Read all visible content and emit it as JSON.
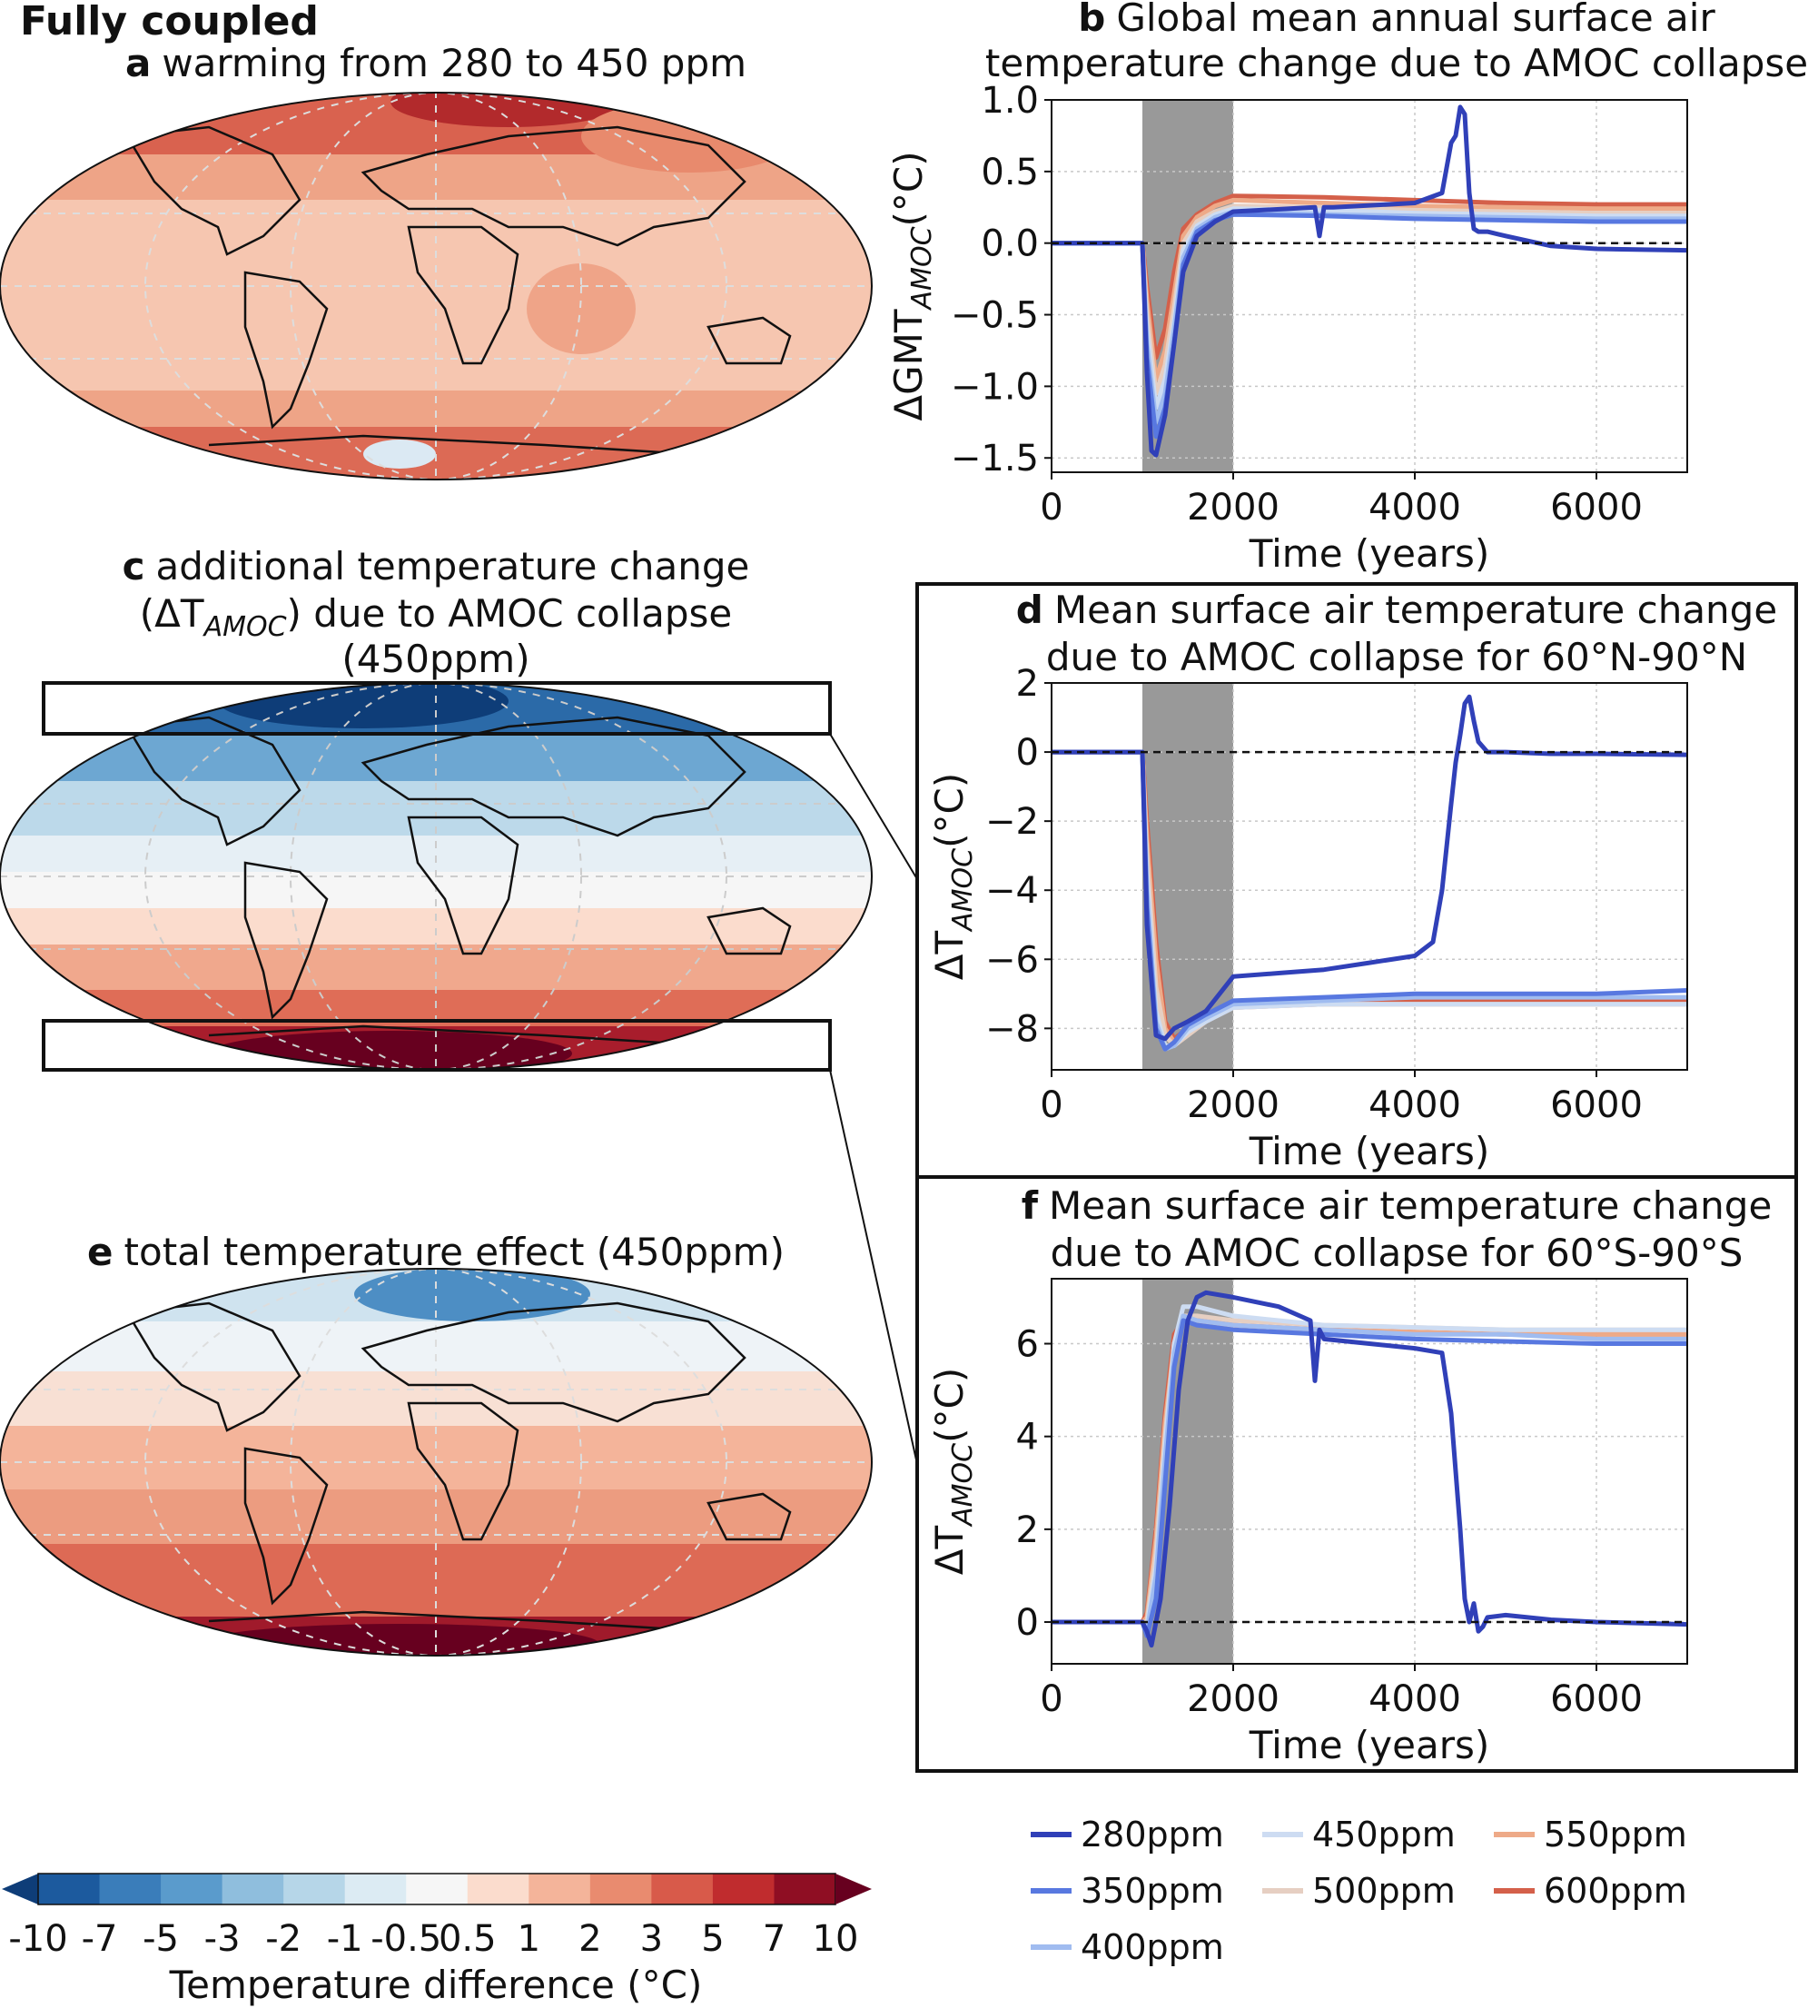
{
  "figure_title": "Fully coupled",
  "maps": [
    {
      "letter": "a",
      "title_lines": [
        "warming from 280 to 450 ppm"
      ],
      "pattern": "warming"
    },
    {
      "letter": "c",
      "title_lines": [
        "additional temperature change",
        "(ΔT",
        "AMOC",
        ") due to AMOC collapse",
        "(450ppm)"
      ],
      "pattern": "amoc"
    },
    {
      "letter": "e",
      "title_lines": [
        "total temperature effect (450ppm)"
      ],
      "pattern": "total"
    }
  ],
  "colorbar": {
    "label": "Temperature difference (°C)",
    "ticks": [
      "-10",
      "-7",
      "-5",
      "-3",
      "-2",
      "-1",
      "-0.5",
      "0.5",
      "1",
      "2",
      "3",
      "5",
      "7",
      "10"
    ],
    "colors": [
      "#1c5a9e",
      "#3a7dba",
      "#5a9bcc",
      "#8fbedd",
      "#b6d6e8",
      "#dcebf3",
      "#f6f6f6",
      "#fbdccd",
      "#f4b49a",
      "#e98b6f",
      "#d85a4a",
      "#c02c2e",
      "#8f0e23"
    ],
    "extend_low": "#0e3d78",
    "extend_high": "#67001f"
  },
  "legend": {
    "entries": [
      {
        "label": "280ppm",
        "color": "#3040b8"
      },
      {
        "label": "350ppm",
        "color": "#5878e0"
      },
      {
        "label": "400ppm",
        "color": "#a0bcf0"
      },
      {
        "label": "450ppm",
        "color": "#cddcf2"
      },
      {
        "label": "500ppm",
        "color": "#e6cfc2"
      },
      {
        "label": "550ppm",
        "color": "#eeaa88"
      },
      {
        "label": "600ppm",
        "color": "#d4604a"
      }
    ]
  },
  "chart_data": [
    {
      "letter": "b",
      "type": "line",
      "title_lines": [
        "Global mean annual surface air",
        "temperature change due to AMOC collapse"
      ],
      "ylabel_main": "ΔGMT",
      "ylabel_sub": "AMOC",
      "ylabel_unit": "(°C)",
      "xlabel": "Time (years)",
      "xlim": [
        0,
        7000
      ],
      "ylim": [
        -1.6,
        1.0
      ],
      "xticks": [
        0,
        2000,
        4000,
        6000
      ],
      "yticks": [
        -1.5,
        -1.0,
        -0.5,
        0.0,
        0.5,
        1.0
      ],
      "ytick_labels": [
        "−1.5",
        "−1.0",
        "−0.5",
        "0.0",
        "0.5",
        "1.0"
      ],
      "shaded_x": [
        1000,
        2000
      ],
      "zero_line": true,
      "grid": true,
      "series": [
        {
          "name": "600ppm",
          "x": [
            0,
            1000,
            1050,
            1150,
            1250,
            1350,
            1450,
            1600,
            1800,
            2000,
            3000,
            4000,
            5000,
            6000,
            7000
          ],
          "y": [
            0,
            0,
            -0.3,
            -0.8,
            -0.6,
            -0.2,
            0.1,
            0.2,
            0.28,
            0.33,
            0.32,
            0.3,
            0.28,
            0.27,
            0.27
          ]
        },
        {
          "name": "550ppm",
          "x": [
            0,
            1000,
            1050,
            1150,
            1250,
            1350,
            1450,
            1600,
            1800,
            2000,
            3000,
            4000,
            5000,
            6000,
            7000
          ],
          "y": [
            0,
            0,
            -0.4,
            -0.95,
            -0.75,
            -0.35,
            0.05,
            0.18,
            0.26,
            0.3,
            0.28,
            0.26,
            0.25,
            0.24,
            0.24
          ]
        },
        {
          "name": "500ppm",
          "x": [
            0,
            1000,
            1050,
            1150,
            1250,
            1350,
            1450,
            1600,
            1800,
            2000,
            3000,
            4000,
            5000,
            6000,
            7000
          ],
          "y": [
            0,
            0,
            -0.5,
            -1.05,
            -0.85,
            -0.45,
            0.0,
            0.15,
            0.22,
            0.26,
            0.25,
            0.23,
            0.22,
            0.21,
            0.21
          ]
        },
        {
          "name": "450ppm",
          "x": [
            0,
            1000,
            1050,
            1150,
            1250,
            1350,
            1450,
            1600,
            1800,
            2000,
            3000,
            4000,
            5000,
            6000,
            7000
          ],
          "y": [
            0,
            0,
            -0.6,
            -1.15,
            -0.95,
            -0.55,
            -0.05,
            0.12,
            0.2,
            0.24,
            0.23,
            0.21,
            0.2,
            0.19,
            0.19
          ]
        },
        {
          "name": "400ppm",
          "x": [
            0,
            1000,
            1050,
            1150,
            1250,
            1350,
            1450,
            1600,
            1800,
            2000,
            3000,
            4000,
            5000,
            6000,
            7000
          ],
          "y": [
            0,
            0,
            -0.7,
            -1.25,
            -1.05,
            -0.6,
            -0.1,
            0.1,
            0.18,
            0.22,
            0.2,
            0.19,
            0.18,
            0.17,
            0.17
          ]
        },
        {
          "name": "350ppm",
          "x": [
            0,
            1000,
            1050,
            1150,
            1250,
            1350,
            1450,
            1600,
            1800,
            2000,
            3000,
            4000,
            5000,
            6000,
            7000
          ],
          "y": [
            0,
            0,
            -0.8,
            -1.35,
            -1.15,
            -0.7,
            -0.15,
            0.08,
            0.16,
            0.2,
            0.19,
            0.17,
            0.16,
            0.15,
            0.15
          ]
        },
        {
          "name": "280ppm",
          "x": [
            0,
            1000,
            1050,
            1100,
            1150,
            1250,
            1350,
            1450,
            1600,
            1800,
            2000,
            2900,
            2950,
            3000,
            3100,
            4000,
            4300,
            4400,
            4450,
            4500,
            4550,
            4600,
            4650,
            4700,
            4800,
            5000,
            5500,
            6000,
            7000
          ],
          "y": [
            0,
            0,
            -0.9,
            -1.45,
            -1.48,
            -1.2,
            -0.7,
            -0.2,
            0.05,
            0.15,
            0.22,
            0.25,
            0.05,
            0.25,
            0.25,
            0.28,
            0.35,
            0.7,
            0.75,
            0.95,
            0.9,
            0.35,
            0.1,
            0.08,
            0.08,
            0.05,
            -0.02,
            -0.04,
            -0.05
          ]
        }
      ]
    },
    {
      "letter": "d",
      "type": "line",
      "title_lines": [
        "Mean surface air temperature change",
        "due to AMOC collapse for 60°N-90°N"
      ],
      "ylabel_main": "ΔT",
      "ylabel_sub": "AMOC",
      "ylabel_unit": "(°C)",
      "xlabel": "Time (years)",
      "xlim": [
        0,
        7000
      ],
      "ylim": [
        -9.2,
        2.0
      ],
      "xticks": [
        0,
        2000,
        4000,
        6000
      ],
      "yticks": [
        -8,
        -6,
        -4,
        -2,
        0,
        2
      ],
      "ytick_labels": [
        "−8",
        "−6",
        "−4",
        "−2",
        "0",
        "2"
      ],
      "shaded_x": [
        1000,
        2000
      ],
      "zero_line": true,
      "grid": true,
      "series": [
        {
          "name": "600ppm",
          "x": [
            0,
            1000,
            1050,
            1150,
            1250,
            1350,
            1500,
            1700,
            2000,
            3000,
            4000,
            5000,
            6000,
            7000
          ],
          "y": [
            0,
            0,
            -2.0,
            -5.5,
            -7.8,
            -8.3,
            -8.0,
            -7.6,
            -7.3,
            -7.2,
            -7.2,
            -7.2,
            -7.2,
            -7.2
          ]
        },
        {
          "name": "550ppm",
          "x": [
            0,
            1000,
            1050,
            1150,
            1250,
            1350,
            1500,
            1700,
            2000,
            3000,
            4000,
            5000,
            6000,
            7000
          ],
          "y": [
            0,
            0,
            -2.5,
            -6.0,
            -8.0,
            -8.4,
            -8.1,
            -7.7,
            -7.4,
            -7.3,
            -7.3,
            -7.3,
            -7.3,
            -7.3
          ]
        },
        {
          "name": "500ppm",
          "x": [
            0,
            1000,
            1050,
            1150,
            1250,
            1350,
            1500,
            1700,
            2000,
            3000,
            4000,
            5000,
            6000,
            7000
          ],
          "y": [
            0,
            0,
            -3.0,
            -6.8,
            -8.2,
            -8.5,
            -8.2,
            -7.8,
            -7.4,
            -7.3,
            -7.3,
            -7.3,
            -7.3,
            -7.3
          ]
        },
        {
          "name": "450ppm",
          "x": [
            0,
            1000,
            1050,
            1150,
            1250,
            1350,
            1500,
            1700,
            2000,
            3000,
            4000,
            5000,
            6000,
            7000
          ],
          "y": [
            0,
            0,
            -3.5,
            -7.5,
            -8.5,
            -8.5,
            -8.1,
            -7.8,
            -7.4,
            -7.3,
            -7.3,
            -7.3,
            -7.3,
            -7.3
          ]
        },
        {
          "name": "400ppm",
          "x": [
            0,
            1000,
            1050,
            1150,
            1250,
            1350,
            1500,
            1700,
            2000,
            3000,
            4000,
            5000,
            6000,
            7000
          ],
          "y": [
            0,
            0,
            -4.0,
            -7.8,
            -8.6,
            -8.5,
            -8.0,
            -7.7,
            -7.3,
            -7.2,
            -7.1,
            -7.1,
            -7.1,
            -7.1
          ]
        },
        {
          "name": "350ppm",
          "x": [
            0,
            1000,
            1050,
            1150,
            1250,
            1350,
            1500,
            1700,
            2000,
            3000,
            4000,
            5000,
            6000,
            7000
          ],
          "y": [
            0,
            0,
            -4.5,
            -8.0,
            -8.6,
            -8.4,
            -7.9,
            -7.6,
            -7.2,
            -7.1,
            -7.0,
            -7.0,
            -7.0,
            -6.9
          ]
        },
        {
          "name": "280ppm",
          "x": [
            0,
            1000,
            1050,
            1150,
            1250,
            1350,
            1500,
            1700,
            2000,
            2500,
            3000,
            3500,
            4000,
            4200,
            4300,
            4400,
            4450,
            4500,
            4550,
            4600,
            4650,
            4700,
            4800,
            5000,
            5500,
            6000,
            7000
          ],
          "y": [
            0,
            0,
            -5.0,
            -8.2,
            -8.3,
            -8.0,
            -7.8,
            -7.5,
            -6.5,
            -6.4,
            -6.3,
            -6.1,
            -5.9,
            -5.5,
            -4.0,
            -1.5,
            -0.3,
            0.5,
            1.4,
            1.6,
            0.9,
            0.3,
            0.0,
            0.0,
            -0.05,
            -0.05,
            -0.08
          ]
        }
      ]
    },
    {
      "letter": "f",
      "type": "line",
      "title_lines": [
        "Mean surface air temperature change",
        "due to AMOC collapse for 60°S-90°S"
      ],
      "ylabel_main": "ΔT",
      "ylabel_sub": "AMOC",
      "ylabel_unit": "(°C)",
      "xlabel": "Time (years)",
      "xlim": [
        0,
        7000
      ],
      "ylim": [
        -0.9,
        7.4
      ],
      "xticks": [
        0,
        2000,
        4000,
        6000
      ],
      "yticks": [
        0,
        2,
        4,
        6
      ],
      "ytick_labels": [
        "0",
        "2",
        "4",
        "6"
      ],
      "shaded_x": [
        1000,
        2000
      ],
      "zero_line": true,
      "grid": true,
      "series": [
        {
          "name": "600ppm",
          "x": [
            0,
            1000,
            1050,
            1150,
            1250,
            1350,
            1450,
            1600,
            2000,
            3000,
            4000,
            5000,
            6000,
            7000
          ],
          "y": [
            0,
            0,
            0.2,
            2.0,
            4.5,
            6.2,
            6.5,
            6.5,
            6.4,
            6.3,
            6.25,
            6.2,
            6.2,
            6.2
          ]
        },
        {
          "name": "550ppm",
          "x": [
            0,
            1000,
            1050,
            1150,
            1250,
            1350,
            1450,
            1600,
            2000,
            3000,
            4000,
            5000,
            6000,
            7000
          ],
          "y": [
            0,
            0,
            0.1,
            1.8,
            4.3,
            6.0,
            6.5,
            6.5,
            6.4,
            6.3,
            6.25,
            6.2,
            6.2,
            6.2
          ]
        },
        {
          "name": "500ppm",
          "x": [
            0,
            1000,
            1050,
            1150,
            1250,
            1350,
            1450,
            1600,
            2000,
            3000,
            4000,
            5000,
            6000,
            7000
          ],
          "y": [
            0,
            0,
            0.0,
            1.5,
            4.0,
            6.0,
            6.6,
            6.6,
            6.5,
            6.4,
            6.35,
            6.3,
            6.3,
            6.3
          ]
        },
        {
          "name": "450ppm",
          "x": [
            0,
            1000,
            1050,
            1150,
            1250,
            1350,
            1450,
            1600,
            2000,
            3000,
            4000,
            5000,
            6000,
            7000
          ],
          "y": [
            0,
            0,
            -0.1,
            1.2,
            3.8,
            6.0,
            6.8,
            6.8,
            6.6,
            6.4,
            6.35,
            6.3,
            6.3,
            6.3
          ]
        },
        {
          "name": "400ppm",
          "x": [
            0,
            1000,
            1050,
            1150,
            1250,
            1350,
            1450,
            1600,
            2000,
            3000,
            4000,
            5000,
            6000,
            7000
          ],
          "y": [
            0,
            0,
            -0.2,
            1.0,
            3.5,
            5.8,
            6.6,
            6.5,
            6.4,
            6.3,
            6.2,
            6.2,
            6.1,
            6.1
          ]
        },
        {
          "name": "350ppm",
          "x": [
            0,
            1000,
            1050,
            1150,
            1250,
            1350,
            1450,
            1600,
            2000,
            3000,
            4000,
            5000,
            6000,
            7000
          ],
          "y": [
            0,
            0,
            -0.3,
            0.5,
            3.0,
            5.5,
            6.5,
            6.4,
            6.3,
            6.2,
            6.1,
            6.05,
            6.0,
            6.0
          ]
        },
        {
          "name": "280ppm",
          "x": [
            0,
            1000,
            1050,
            1100,
            1200,
            1300,
            1400,
            1500,
            1600,
            1700,
            2000,
            2500,
            2850,
            2900,
            2950,
            3000,
            3500,
            4000,
            4300,
            4400,
            4500,
            4550,
            4600,
            4650,
            4700,
            4750,
            4800,
            5000,
            5500,
            6000,
            7000
          ],
          "y": [
            0,
            0,
            -0.2,
            -0.5,
            0.5,
            2.5,
            5.0,
            6.5,
            7.0,
            7.1,
            7.0,
            6.8,
            6.5,
            5.2,
            6.3,
            6.1,
            6.0,
            5.9,
            5.8,
            4.5,
            2.0,
            0.5,
            0.0,
            0.4,
            -0.2,
            -0.1,
            0.1,
            0.15,
            0.05,
            0.0,
            -0.05
          ]
        }
      ]
    }
  ]
}
